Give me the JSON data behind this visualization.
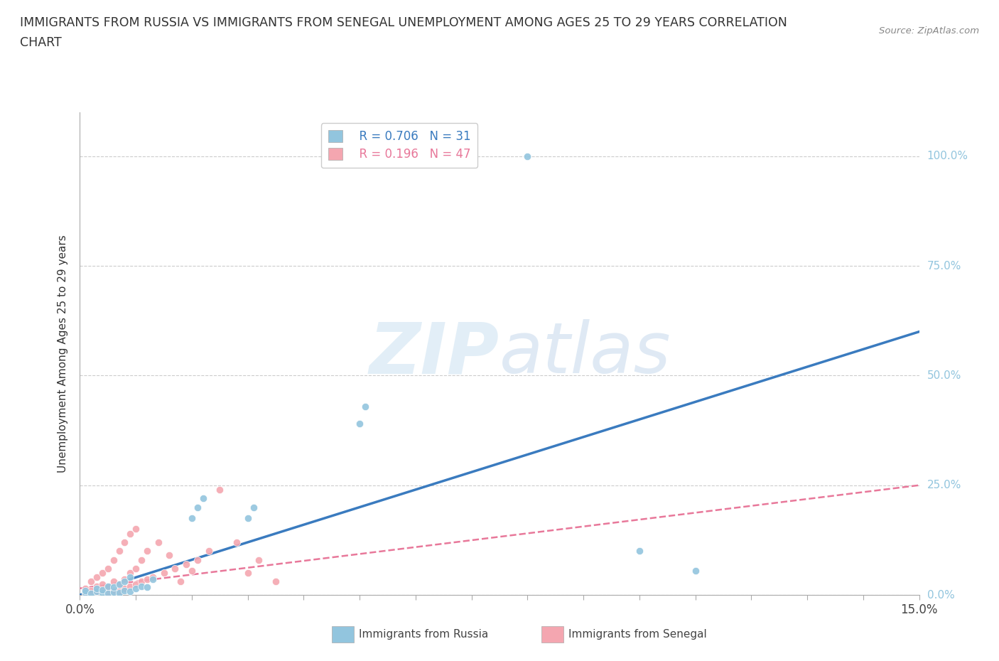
{
  "title_line1": "IMMIGRANTS FROM RUSSIA VS IMMIGRANTS FROM SENEGAL UNEMPLOYMENT AMONG AGES 25 TO 29 YEARS CORRELATION",
  "title_line2": "CHART",
  "source": "Source: ZipAtlas.com",
  "ylabel": "Unemployment Among Ages 25 to 29 years",
  "xlim": [
    0.0,
    0.15
  ],
  "ylim": [
    0.0,
    1.1
  ],
  "ytick_right": [
    0.0,
    0.25,
    0.5,
    0.75,
    1.0
  ],
  "ytick_right_labels": [
    "0.0%",
    "25.0%",
    "50.0%",
    "75.0%",
    "100.0%"
  ],
  "russia_color": "#92c5de",
  "senegal_color": "#f4a6b0",
  "russia_line_color": "#3a7bbf",
  "senegal_line_color": "#e8789a",
  "right_axis_color": "#92c5de",
  "russia_r": 0.706,
  "russia_n": 31,
  "senegal_r": 0.196,
  "senegal_n": 47,
  "background_color": "#ffffff",
  "watermark_zip": "ZIP",
  "watermark_atlas": "atlas",
  "russia_scatter_x": [
    0.001,
    0.001,
    0.002,
    0.003,
    0.003,
    0.004,
    0.004,
    0.005,
    0.005,
    0.006,
    0.006,
    0.007,
    0.007,
    0.008,
    0.008,
    0.009,
    0.009,
    0.01,
    0.011,
    0.012,
    0.013,
    0.02,
    0.021,
    0.022,
    0.03,
    0.031,
    0.05,
    0.051,
    0.08,
    0.1,
    0.11
  ],
  "russia_scatter_y": [
    0.005,
    0.01,
    0.003,
    0.008,
    0.015,
    0.005,
    0.012,
    0.003,
    0.02,
    0.007,
    0.018,
    0.005,
    0.025,
    0.01,
    0.03,
    0.008,
    0.04,
    0.015,
    0.02,
    0.018,
    0.035,
    0.175,
    0.2,
    0.22,
    0.175,
    0.2,
    0.39,
    0.43,
    1.0,
    0.1,
    0.055
  ],
  "senegal_scatter_x": [
    0.001,
    0.001,
    0.002,
    0.002,
    0.003,
    0.003,
    0.003,
    0.004,
    0.004,
    0.004,
    0.005,
    0.005,
    0.005,
    0.006,
    0.006,
    0.006,
    0.007,
    0.007,
    0.007,
    0.008,
    0.008,
    0.008,
    0.009,
    0.009,
    0.009,
    0.01,
    0.01,
    0.01,
    0.011,
    0.011,
    0.012,
    0.012,
    0.013,
    0.014,
    0.015,
    0.016,
    0.017,
    0.018,
    0.019,
    0.02,
    0.021,
    0.023,
    0.025,
    0.028,
    0.03,
    0.032,
    0.035
  ],
  "senegal_scatter_y": [
    0.005,
    0.015,
    0.01,
    0.03,
    0.008,
    0.02,
    0.04,
    0.012,
    0.025,
    0.05,
    0.005,
    0.018,
    0.06,
    0.01,
    0.03,
    0.08,
    0.008,
    0.025,
    0.1,
    0.015,
    0.035,
    0.12,
    0.02,
    0.05,
    0.14,
    0.025,
    0.06,
    0.15,
    0.03,
    0.08,
    0.035,
    0.1,
    0.04,
    0.12,
    0.05,
    0.09,
    0.06,
    0.03,
    0.07,
    0.055,
    0.08,
    0.1,
    0.24,
    0.12,
    0.05,
    0.08,
    0.03
  ],
  "russia_trendline_x": [
    0.0,
    0.15
  ],
  "russia_trendline_y": [
    0.0,
    0.6
  ],
  "senegal_trendline_x": [
    0.0,
    0.15
  ],
  "senegal_trendline_y": [
    0.015,
    0.25
  ]
}
